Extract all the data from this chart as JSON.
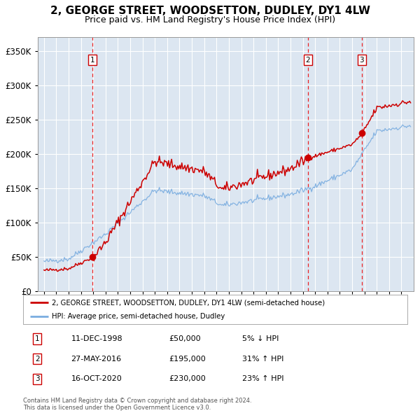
{
  "title": "2, GEORGE STREET, WOODSETTON, DUDLEY, DY1 4LW",
  "subtitle": "Price paid vs. HM Land Registry's House Price Index (HPI)",
  "title_fontsize": 11,
  "subtitle_fontsize": 9,
  "plot_bg_color": "#dce6f1",
  "fig_bg_color": "#ffffff",
  "ylim": [
    0,
    370000
  ],
  "yticks": [
    0,
    50000,
    100000,
    150000,
    200000,
    250000,
    300000,
    350000
  ],
  "ytick_labels": [
    "£0",
    "£50K",
    "£100K",
    "£150K",
    "£200K",
    "£250K",
    "£300K",
    "£350K"
  ],
  "sale_year_floats": [
    1998.94,
    2016.41,
    2020.79
  ],
  "sale_prices": [
    50000,
    195000,
    230000
  ],
  "sale_labels": [
    "1",
    "2",
    "3"
  ],
  "sale_label_info": [
    {
      "num": "1",
      "date": "11-DEC-1998",
      "price": "£50,000",
      "change": "5% ↓ HPI"
    },
    {
      "num": "2",
      "date": "27-MAY-2016",
      "price": "£195,000",
      "change": "31% ↑ HPI"
    },
    {
      "num": "3",
      "date": "16-OCT-2020",
      "price": "£230,000",
      "change": "23% ↑ HPI"
    }
  ],
  "legend_line1": "2, GEORGE STREET, WOODSETTON, DUDLEY, DY1 4LW (semi-detached house)",
  "legend_line2": "HPI: Average price, semi-detached house, Dudley",
  "footer": "Contains HM Land Registry data © Crown copyright and database right 2024.\nThis data is licensed under the Open Government Licence v3.0.",
  "red_line_color": "#cc0000",
  "blue_line_color": "#7aade0",
  "dashed_line_color": "#ee0000",
  "marker_color": "#cc0000",
  "grid_color": "#ffffff",
  "border_color": "#999999",
  "xlim_left": 1994.5,
  "xlim_right": 2025.0
}
